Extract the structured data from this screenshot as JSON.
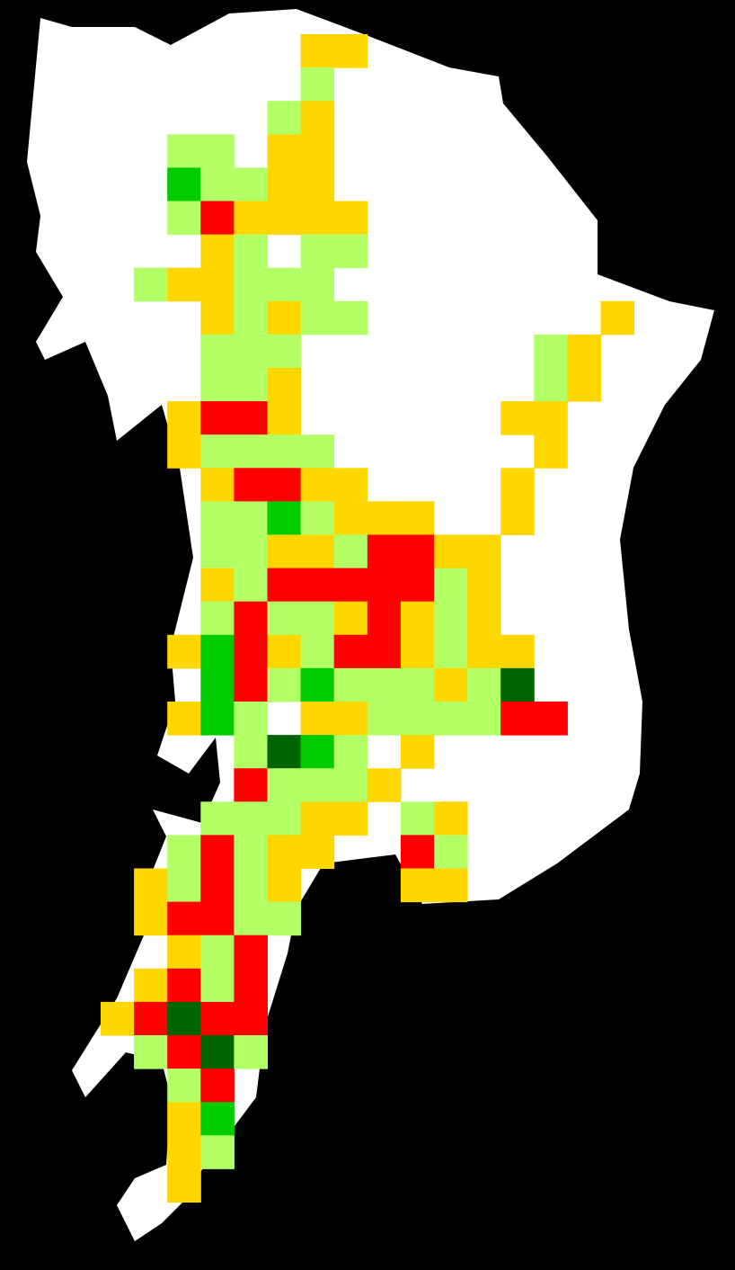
{
  "map": {
    "colors": {
      "Y": "#ffd700",
      "L": "#b3ff66",
      "G": "#00cc00",
      "D": "#006400",
      "R": "#ff0000"
    },
    "grid": [
      [
        null,
        null,
        null,
        null,
        null,
        null,
        "Y",
        "Y"
      ],
      [
        null,
        null,
        null,
        null,
        null,
        null,
        "L"
      ],
      [
        null,
        null,
        null,
        null,
        null,
        "L",
        "Y"
      ],
      [
        null,
        null,
        "L",
        "L",
        null,
        "Y",
        "Y"
      ],
      [
        null,
        null,
        "G",
        "L",
        "L",
        "Y",
        "Y"
      ],
      [
        null,
        null,
        "L",
        "R",
        "Y",
        "Y",
        "Y",
        "Y"
      ],
      [
        null,
        null,
        null,
        "Y",
        "L",
        null,
        "L",
        "L"
      ],
      [
        null,
        "L",
        "Y",
        "Y",
        "L",
        "L",
        "L"
      ],
      [
        null,
        null,
        null,
        "Y",
        "L",
        "Y",
        "L",
        "L",
        null,
        null,
        null,
        null,
        null,
        null,
        null,
        "Y"
      ],
      [
        null,
        null,
        null,
        "L",
        "L",
        "L",
        null,
        null,
        null,
        null,
        null,
        null,
        null,
        "L",
        "Y"
      ],
      [
        null,
        null,
        null,
        "L",
        "L",
        "Y",
        null,
        null,
        null,
        null,
        null,
        null,
        null,
        "L",
        "Y"
      ],
      [
        null,
        null,
        "Y",
        "R",
        "R",
        "Y",
        null,
        null,
        null,
        null,
        null,
        null,
        "Y",
        "Y"
      ],
      [
        null,
        null,
        "Y",
        "L",
        "L",
        "L",
        "L",
        null,
        null,
        null,
        null,
        null,
        null,
        "Y"
      ],
      [
        null,
        null,
        null,
        "Y",
        "R",
        "R",
        "Y",
        "Y",
        null,
        null,
        null,
        null,
        "Y"
      ],
      [
        null,
        null,
        null,
        "L",
        "L",
        "G",
        "L",
        "Y",
        "Y",
        "Y",
        null,
        null,
        "Y"
      ],
      [
        null,
        null,
        null,
        "L",
        "L",
        "Y",
        "Y",
        "L",
        "R",
        "R",
        "Y",
        "Y"
      ],
      [
        null,
        null,
        null,
        "Y",
        "L",
        "R",
        "R",
        "R",
        "R",
        "R",
        "L",
        "Y"
      ],
      [
        null,
        null,
        null,
        "L",
        "R",
        "L",
        "L",
        "Y",
        "R",
        "Y",
        "L",
        "Y"
      ],
      [
        null,
        null,
        "Y",
        "G",
        "R",
        "Y",
        "L",
        "R",
        "R",
        "Y",
        "L",
        "Y",
        "Y"
      ],
      [
        null,
        null,
        null,
        "G",
        "R",
        "L",
        "G",
        "L",
        "L",
        "L",
        "Y",
        "L",
        "D"
      ],
      [
        null,
        null,
        "Y",
        "G",
        "L",
        null,
        "Y",
        "Y",
        "L",
        "L",
        "L",
        "L",
        "R",
        "R"
      ],
      [
        null,
        null,
        null,
        null,
        "L",
        "D",
        "G",
        "L",
        null,
        "Y"
      ],
      [
        null,
        null,
        null,
        null,
        "R",
        "L",
        "L",
        "L",
        "Y"
      ],
      [
        null,
        null,
        null,
        "L",
        "L",
        "L",
        "Y",
        "Y",
        null,
        "L",
        "Y"
      ],
      [
        null,
        null,
        "L",
        "R",
        "L",
        "Y",
        "Y",
        null,
        null,
        "R",
        "L"
      ],
      [
        null,
        "Y",
        "L",
        "R",
        "L",
        "Y",
        null,
        null,
        null,
        "Y",
        "Y"
      ],
      [
        null,
        "Y",
        "R",
        "R",
        "L",
        "L"
      ],
      [
        null,
        null,
        "Y",
        "L",
        "R"
      ],
      [
        null,
        "Y",
        "R",
        "L",
        "R"
      ],
      [
        "Y",
        "R",
        "D",
        "R",
        "R"
      ],
      [
        null,
        "L",
        "R",
        "D",
        "L"
      ],
      [
        null,
        null,
        "L",
        "R"
      ],
      [
        null,
        null,
        "Y",
        "G"
      ],
      [
        null,
        null,
        "Y",
        "L"
      ],
      [
        null,
        null,
        "Y"
      ]
    ]
  }
}
